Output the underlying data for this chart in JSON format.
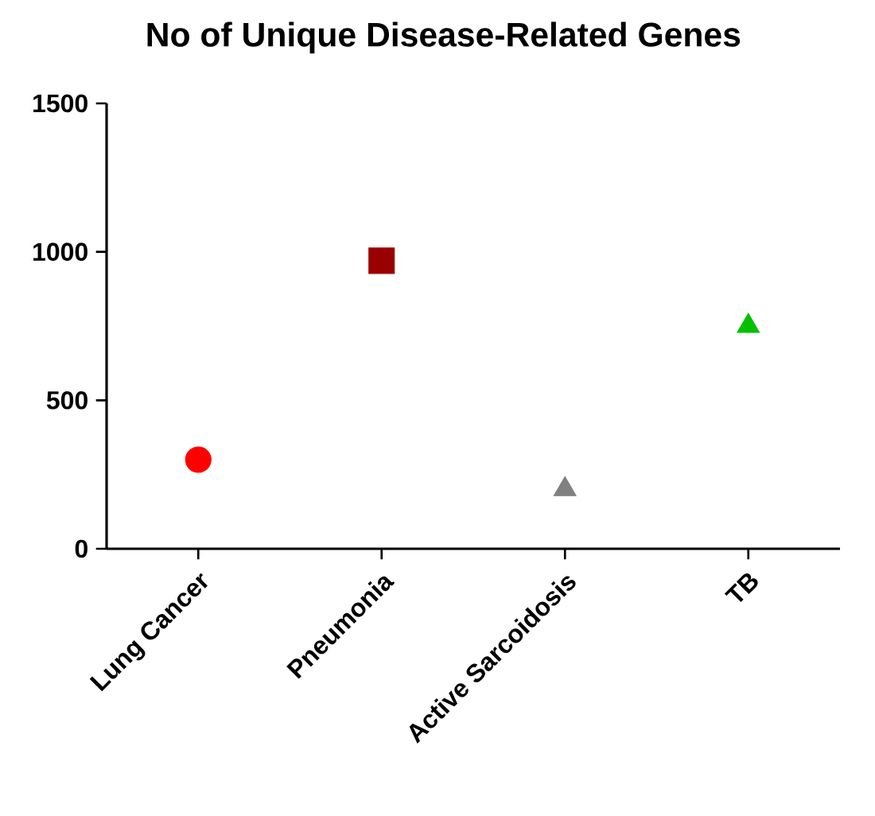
{
  "chart_data": {
    "type": "scatter",
    "title": "No of Unique Disease-Related Genes",
    "categories": [
      "Lung Cancer",
      "Pneumonia",
      "Active Sarcoidosis",
      "TB"
    ],
    "series": [
      {
        "color": "#ff0000",
        "marker": "circle",
        "values": [
          300,
          null,
          null,
          null
        ]
      },
      {
        "color": "#990000",
        "marker": "square",
        "values": [
          null,
          970,
          null,
          null
        ]
      },
      {
        "color": "#808080",
        "marker": "triangle",
        "values": [
          null,
          null,
          200,
          null
        ]
      },
      {
        "color": "#00c000",
        "marker": "triangle",
        "values": [
          null,
          null,
          null,
          750
        ]
      }
    ],
    "ylim": [
      0,
      1500
    ],
    "yticks": [
      0,
      500,
      1000,
      1500
    ],
    "grid": false
  }
}
